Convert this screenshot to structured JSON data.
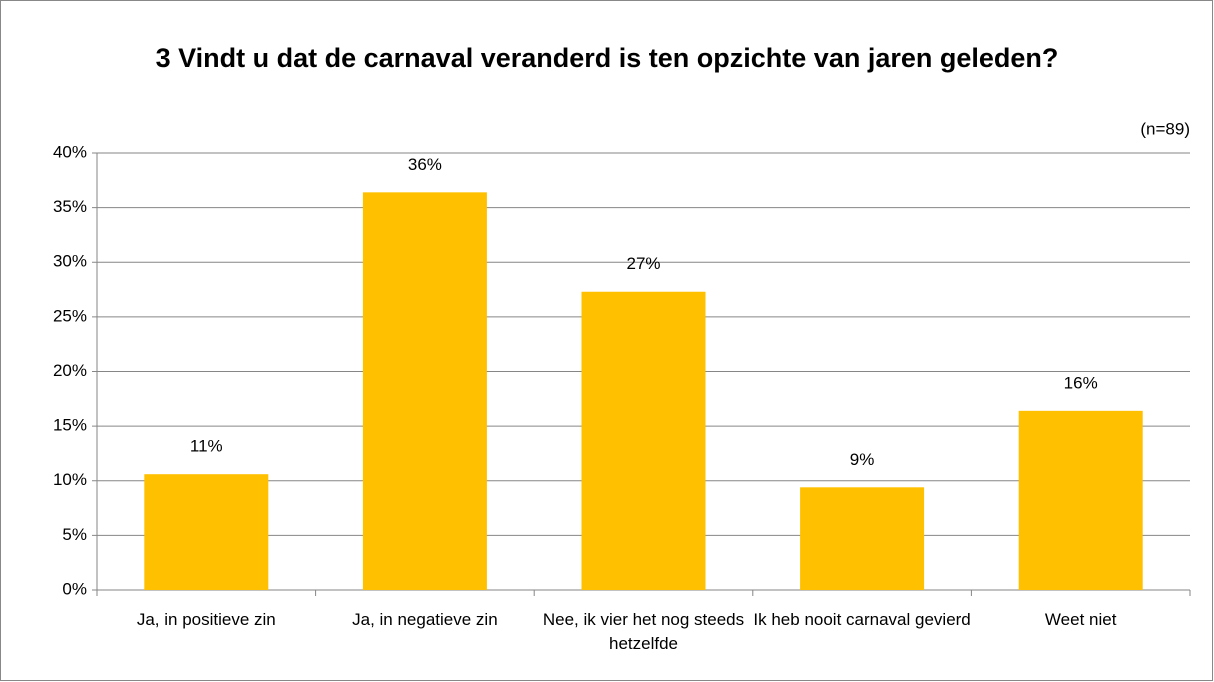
{
  "chart_data": {
    "type": "bar",
    "title": "3 Vindt u dat de carnaval veranderd is ten opzichte van jaren geleden?",
    "annotation": "(n=89)",
    "categories": [
      "Ja, in positieve zin",
      "Ja, in negatieve zin",
      "Nee, ik vier het nog steeds hetzelfde",
      "Ik heb nooit carnaval gevierd",
      "Weet niet"
    ],
    "values": [
      10.6,
      36.4,
      27.3,
      9.4,
      16.4
    ],
    "value_labels": [
      "11%",
      "36%",
      "27%",
      "9%",
      "16%"
    ],
    "color": "#ffc000",
    "ylim": [
      0,
      40
    ],
    "yticks": [
      {
        "value": 0,
        "label": "0%"
      },
      {
        "value": 5,
        "label": "5%"
      },
      {
        "value": 10,
        "label": "10%"
      },
      {
        "value": 15,
        "label": "15%"
      },
      {
        "value": 20,
        "label": "20%"
      },
      {
        "value": 25,
        "label": "25%"
      },
      {
        "value": 30,
        "label": "30%"
      },
      {
        "value": 35,
        "label": "35%"
      },
      {
        "value": 40,
        "label": "40%"
      }
    ],
    "grid": true
  }
}
